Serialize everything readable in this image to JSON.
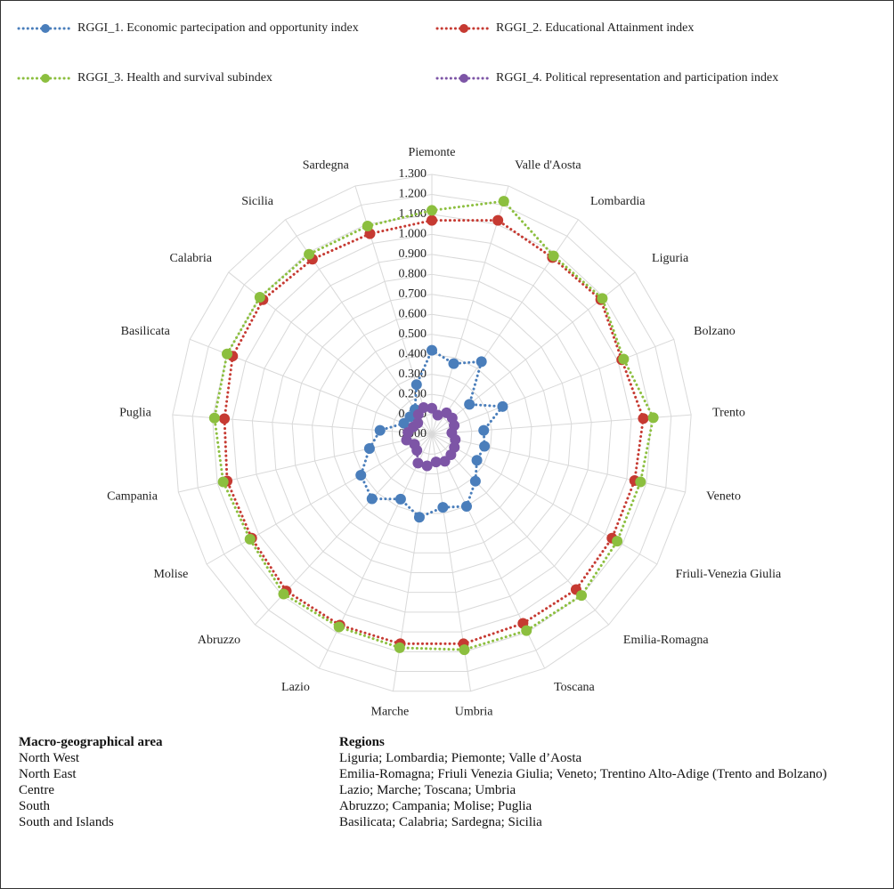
{
  "chart_data": {
    "type": "radar",
    "categories": [
      "Piemonte",
      "Valle d'Aosta",
      "Lombardia",
      "Liguria",
      "Bolzano",
      "Trento",
      "Veneto",
      "Friuli-Venezia Giulia",
      "Emilia-Romagna",
      "Toscana",
      "Umbria",
      "Marche",
      "Lazio",
      "Abruzzo",
      "Molise",
      "Campania",
      "Puglia",
      "Basilicata",
      "Calabria",
      "Sicilia",
      "Sardegna"
    ],
    "series": [
      {
        "name": "RGGI_1. Economic partecipation  and opportunity index",
        "color": "#4a7ebb",
        "values": [
          0.42,
          0.37,
          0.44,
          0.24,
          0.38,
          0.26,
          0.27,
          0.26,
          0.32,
          0.4,
          0.37,
          0.42,
          0.36,
          0.44,
          0.41,
          0.32,
          0.26,
          0.15,
          0.14,
          0.15,
          0.26
        ]
      },
      {
        "name": "RGGI_2. Educational Attainment index",
        "color": "#c63a32",
        "values": [
          1.07,
          1.12,
          1.07,
          1.08,
          1.02,
          1.06,
          1.04,
          1.04,
          1.06,
          1.05,
          1.06,
          1.06,
          1.06,
          1.07,
          1.04,
          1.05,
          1.04,
          1.07,
          1.08,
          1.06,
          1.05
        ]
      },
      {
        "name": "RGGI_3. Health and survival subindex",
        "color": "#8cbf3f",
        "values": [
          1.12,
          1.22,
          1.08,
          1.09,
          1.03,
          1.11,
          1.07,
          1.07,
          1.1,
          1.09,
          1.09,
          1.08,
          1.07,
          1.09,
          1.05,
          1.07,
          1.09,
          1.1,
          1.1,
          1.09,
          1.09
        ]
      },
      {
        "name": "RGGI_4. Political representation and participation index",
        "color": "#7d55a6",
        "values": [
          0.13,
          0.1,
          0.13,
          0.13,
          0.12,
          0.1,
          0.12,
          0.13,
          0.14,
          0.15,
          0.14,
          0.16,
          0.16,
          0.11,
          0.1,
          0.13,
          0.12,
          0.1,
          0.09,
          0.12,
          0.14
        ]
      }
    ],
    "rlim": [
      0,
      1.3
    ],
    "rticks": [
      {
        "value": 0,
        "label": "0.000"
      },
      {
        "value": 0.1,
        "label": "0.100"
      },
      {
        "value": 0.2,
        "label": "0.200"
      },
      {
        "value": 0.3,
        "label": "0.300"
      },
      {
        "value": 0.4,
        "label": "0.400"
      },
      {
        "value": 0.5,
        "label": "0.500"
      },
      {
        "value": 0.6,
        "label": "0.600"
      },
      {
        "value": 0.7,
        "label": "0.700"
      },
      {
        "value": 0.8,
        "label": "0.800"
      },
      {
        "value": 0.9,
        "label": "0.900"
      },
      {
        "value": 1.0,
        "label": "1.000"
      },
      {
        "value": 1.1,
        "label": "1.100"
      },
      {
        "value": 1.2,
        "label": "1.200"
      },
      {
        "value": 1.3,
        "label": "1.300"
      }
    ],
    "grid": true,
    "legend": "top"
  },
  "table": {
    "headers": [
      "Macro-geographical area",
      "Regions"
    ],
    "rows": [
      [
        "North West",
        "Liguria; Lombardia; Piemonte; Valle d’Aosta"
      ],
      [
        "North East",
        "Emilia-Romagna; Friuli Venezia Giulia; Veneto; Trentino Alto-Adige (Trento and Bolzano)"
      ],
      [
        "Centre",
        "Lazio; Marche; Toscana; Umbria"
      ],
      [
        "South",
        "Abruzzo; Campania; Molise; Puglia"
      ],
      [
        "South and Islands",
        "Basilicata; Calabria; Sardegna; Sicilia"
      ]
    ]
  }
}
